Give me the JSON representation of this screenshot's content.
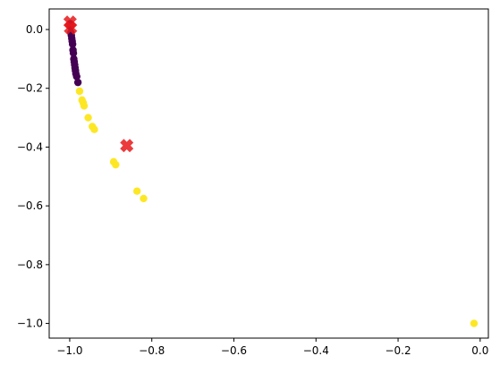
{
  "chart_data": {
    "type": "scatter",
    "title": "",
    "xlabel": "",
    "ylabel": "",
    "xlim": [
      -1.05,
      0.02
    ],
    "ylim": [
      -1.05,
      0.07
    ],
    "grid": false,
    "legend": "none",
    "x_ticks": [
      -1.0,
      -0.8,
      -0.6,
      -0.4,
      -0.2,
      0.0
    ],
    "x_tick_labels": [
      "−1.0",
      "−0.8",
      "−0.6",
      "−0.4",
      "−0.2",
      "0.0"
    ],
    "y_ticks": [
      0.0,
      -0.2,
      -0.4,
      -0.6,
      -0.8,
      -1.0
    ],
    "y_tick_labels": [
      "0.0",
      "−0.2",
      "−0.4",
      "−0.6",
      "−0.8",
      "−1.0"
    ],
    "colors": {
      "cluster_0": "#440154",
      "cluster_1": "#fde725",
      "center_marker": "#e8191b"
    },
    "series": [
      {
        "cluster": 0,
        "points": [
          [
            -0.999,
            0.02
          ],
          [
            -0.998,
            0.01
          ],
          [
            -0.997,
            -0.01
          ],
          [
            -0.996,
            -0.02
          ],
          [
            -0.995,
            -0.03
          ],
          [
            -0.994,
            -0.04
          ],
          [
            -0.993,
            -0.05
          ],
          [
            -0.992,
            -0.07
          ],
          [
            -0.991,
            -0.08
          ],
          [
            -0.99,
            -0.1
          ],
          [
            -0.989,
            -0.11
          ],
          [
            -0.988,
            -0.12
          ],
          [
            -0.987,
            -0.13
          ],
          [
            -0.986,
            -0.14
          ],
          [
            -0.985,
            -0.15
          ],
          [
            -0.983,
            -0.16
          ],
          [
            -0.98,
            -0.18
          ]
        ]
      },
      {
        "cluster": 1,
        "points": [
          [
            -0.976,
            -0.21
          ],
          [
            -0.97,
            -0.24
          ],
          [
            -0.967,
            -0.25
          ],
          [
            -0.965,
            -0.26
          ],
          [
            -0.955,
            -0.3
          ],
          [
            -0.945,
            -0.33
          ],
          [
            -0.94,
            -0.34
          ],
          [
            -0.893,
            -0.45
          ],
          [
            -0.888,
            -0.46
          ],
          [
            -0.836,
            -0.55
          ],
          [
            -0.82,
            -0.575
          ],
          [
            -0.015,
            -1.0
          ]
        ]
      }
    ],
    "centers": [
      [
        -0.999,
        0.025
      ],
      [
        -0.998,
        0.005
      ],
      [
        -0.861,
        -0.395
      ]
    ]
  }
}
